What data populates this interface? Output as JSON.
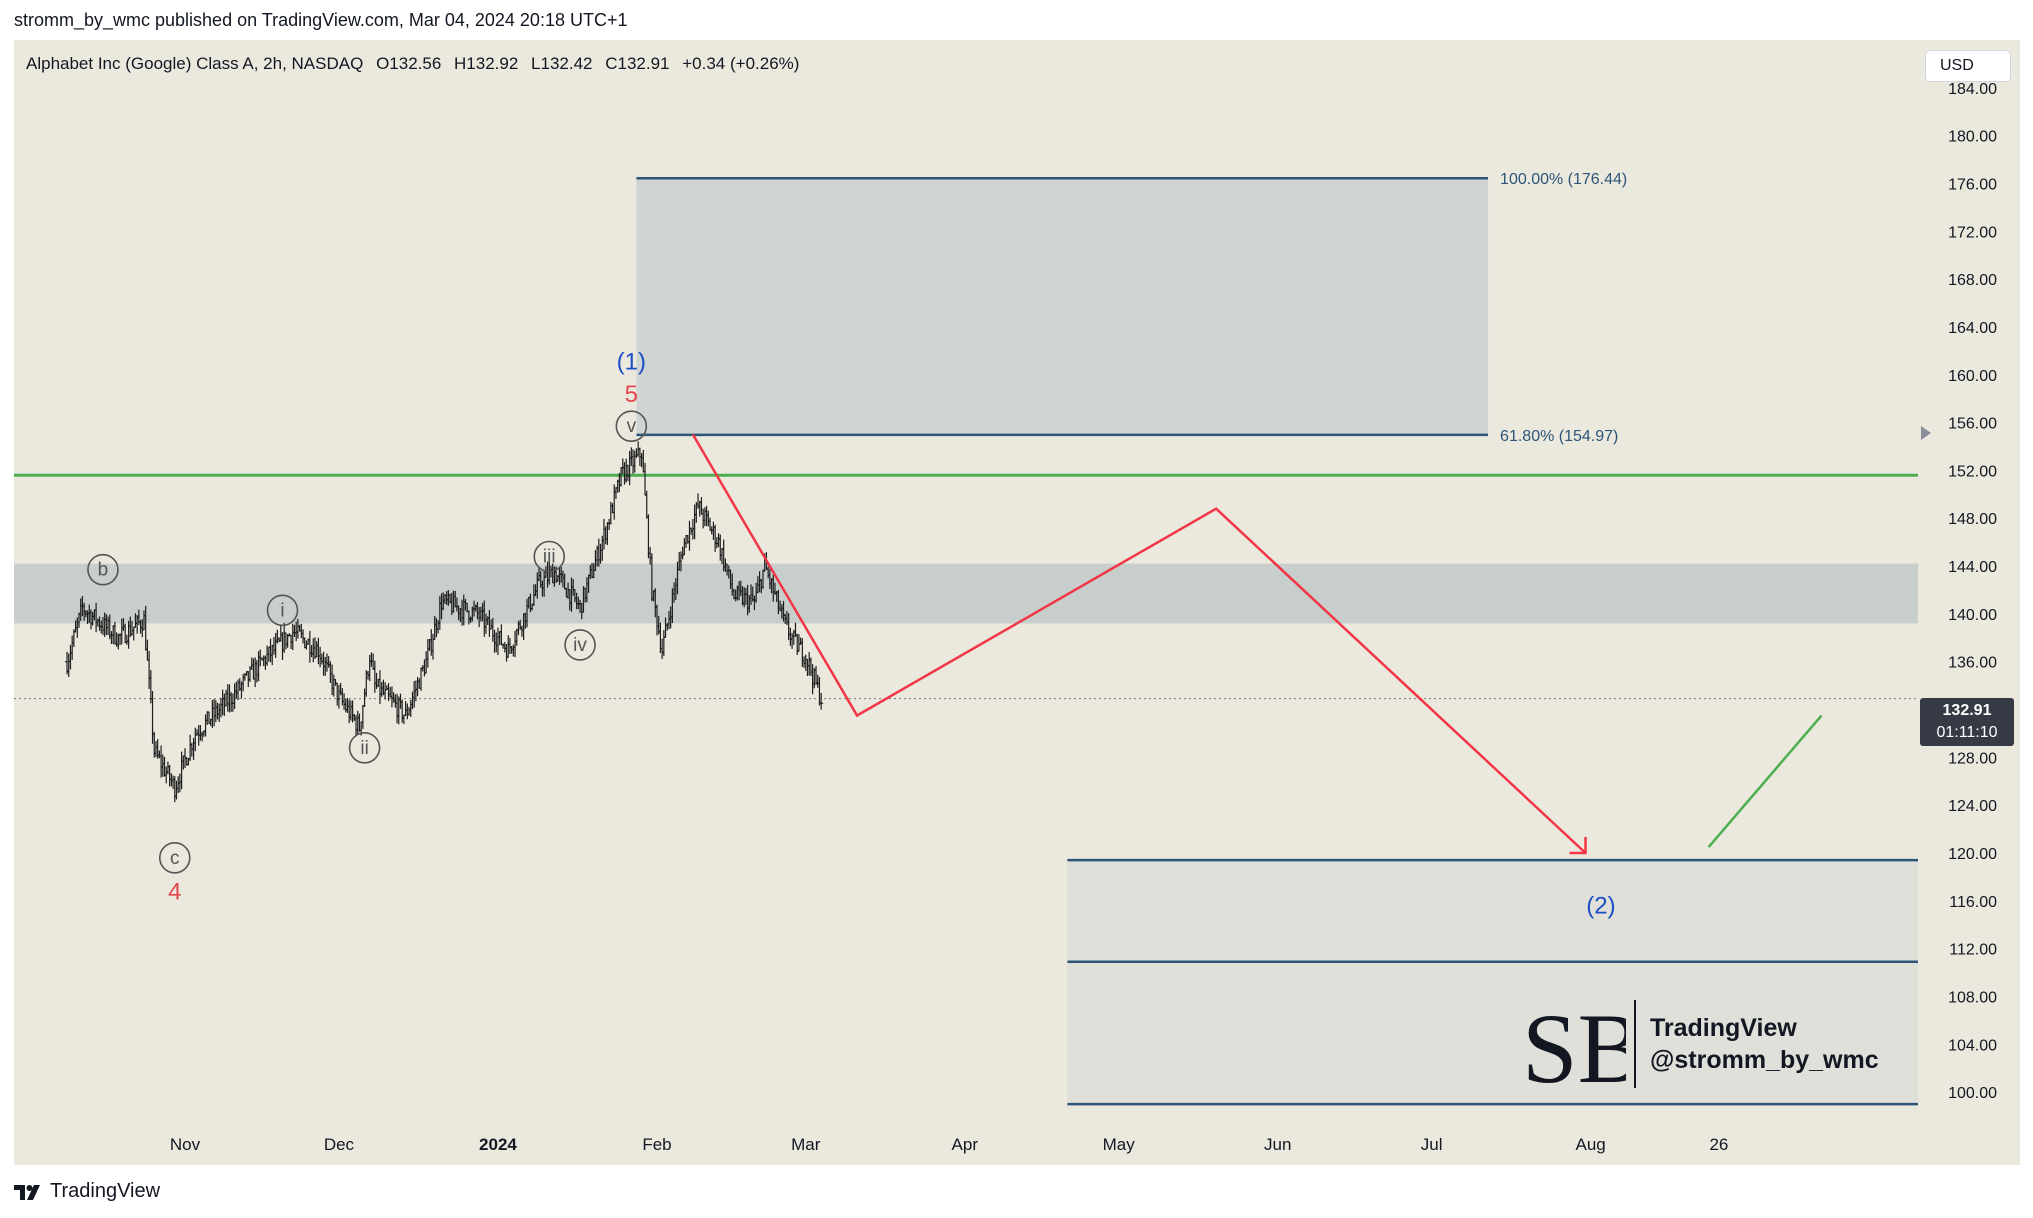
{
  "header": {
    "publisher_line": "stromm_by_wmc published on TradingView.com, Mar 04, 2024 20:18 UTC+1"
  },
  "chart_data": {
    "type": "candlestick",
    "symbol_line": {
      "name": "Alphabet Inc (Google) Class A, 2h, NASDAQ",
      "open": "O132.56",
      "high": "H132.92",
      "low": "L132.42",
      "close": "C132.91",
      "change": "+0.34 (+0.26%)"
    },
    "currency": "USD",
    "ylim": [
      97,
      188
    ],
    "y_ticks": [
      100,
      104,
      108,
      112,
      116,
      120,
      124,
      128,
      136,
      140,
      144,
      148,
      152,
      156,
      160,
      164,
      168,
      172,
      176,
      180,
      184
    ],
    "y_tick_labels": [
      "100.00",
      "104.00",
      "108.00",
      "112.00",
      "116.00",
      "120.00",
      "124.00",
      "128.00",
      "136.00",
      "140.00",
      "144.00",
      "148.00",
      "152.00",
      "156.00",
      "160.00",
      "164.00",
      "168.00",
      "172.00",
      "176.00",
      "180.00",
      "184.00"
    ],
    "x_ticks": [
      {
        "label": "Nov",
        "date": "2023-11-01"
      },
      {
        "label": "Dec",
        "date": "2023-12-01"
      },
      {
        "label": "2024",
        "date": "2024-01-01",
        "bold": true
      },
      {
        "label": "Feb",
        "date": "2024-02-01"
      },
      {
        "label": "Mar",
        "date": "2024-03-01"
      },
      {
        "label": "Apr",
        "date": "2024-04-01"
      },
      {
        "label": "May",
        "date": "2024-05-01"
      },
      {
        "label": "Jun",
        "date": "2024-06-01"
      },
      {
        "label": "Jul",
        "date": "2024-07-01"
      },
      {
        "label": "Aug",
        "date": "2024-08-01"
      },
      {
        "label": "26",
        "date": "2024-08-26"
      }
    ],
    "last_price": {
      "value": "132.91",
      "countdown": "01:11:10",
      "price": 132.91
    },
    "price_path": [
      {
        "date": "2023-10-09",
        "price": 136.0
      },
      {
        "date": "2023-10-12",
        "price": 140.5
      },
      {
        "date": "2023-10-19",
        "price": 138.0
      },
      {
        "date": "2023-10-24",
        "price": 139.5
      },
      {
        "date": "2023-10-26",
        "price": 128.5
      },
      {
        "date": "2023-10-30",
        "price": 125.5
      },
      {
        "date": "2023-11-03",
        "price": 130.0
      },
      {
        "date": "2023-11-10",
        "price": 133.0
      },
      {
        "date": "2023-11-16",
        "price": 136.0
      },
      {
        "date": "2023-11-22",
        "price": 138.5
      },
      {
        "date": "2023-11-27",
        "price": 137.0
      },
      {
        "date": "2023-12-01",
        "price": 133.0
      },
      {
        "date": "2023-12-05",
        "price": 130.5
      },
      {
        "date": "2023-12-07",
        "price": 136.5
      },
      {
        "date": "2023-12-08",
        "price": 134.0
      },
      {
        "date": "2023-12-14",
        "price": 131.5
      },
      {
        "date": "2023-12-18",
        "price": 136.0
      },
      {
        "date": "2023-12-21",
        "price": 141.0
      },
      {
        "date": "2023-12-28",
        "price": 140.0
      },
      {
        "date": "2024-01-03",
        "price": 137.0
      },
      {
        "date": "2024-01-09",
        "price": 142.5
      },
      {
        "date": "2024-01-12",
        "price": 143.5
      },
      {
        "date": "2024-01-17",
        "price": 140.5
      },
      {
        "date": "2024-01-22",
        "price": 147.0
      },
      {
        "date": "2024-01-25",
        "price": 151.5
      },
      {
        "date": "2024-01-29",
        "price": 153.5
      },
      {
        "date": "2024-01-31",
        "price": 142.0
      },
      {
        "date": "2024-02-02",
        "price": 137.0
      },
      {
        "date": "2024-02-06",
        "price": 145.5
      },
      {
        "date": "2024-02-09",
        "price": 149.0
      },
      {
        "date": "2024-02-13",
        "price": 146.0
      },
      {
        "date": "2024-02-16",
        "price": 141.5
      },
      {
        "date": "2024-02-20",
        "price": 141.0
      },
      {
        "date": "2024-02-22",
        "price": 144.0
      },
      {
        "date": "2024-02-26",
        "price": 139.0
      },
      {
        "date": "2024-02-28",
        "price": 137.5
      },
      {
        "date": "2024-03-01",
        "price": 136.5
      },
      {
        "date": "2024-03-04",
        "price": 132.91
      }
    ],
    "support_zone": {
      "low": 139.2,
      "high": 144.2
    },
    "horizontal_line": {
      "price": 151.6,
      "color": "#4caf50"
    },
    "fib_target_box": {
      "start": "2024-01-28",
      "end": "2024-07-12",
      "low": 154.97,
      "high": 176.44,
      "labels": [
        "100.00% (176.44)",
        "61.80% (154.97)"
      ]
    },
    "wave2_zone": {
      "start": "2024-04-21",
      "levels": [
        119.4,
        110.9,
        99.0
      ]
    },
    "projection_path": [
      {
        "date": "2024-02-08",
        "price": 155.0
      },
      {
        "date": "2024-03-11",
        "price": 131.5
      },
      {
        "date": "2024-05-20",
        "price": 148.8
      },
      {
        "date": "2024-07-31",
        "price": 120.0
      }
    ],
    "green_projection": [
      {
        "date": "2024-08-24",
        "price": 120.5
      },
      {
        "date": "2024-09-15",
        "price": 131.5
      }
    ],
    "wave_labels": [
      {
        "text": "b",
        "circle": true,
        "date": "2023-10-16",
        "price": 143.7,
        "color": "#555555"
      },
      {
        "text": "c",
        "circle": true,
        "date": "2023-10-30",
        "price": 119.6,
        "color": "#555555"
      },
      {
        "text": "4",
        "circle": false,
        "date": "2023-10-30",
        "price": 116.8,
        "color": "#e5474c"
      },
      {
        "text": "i",
        "circle": true,
        "date": "2023-11-20",
        "price": 140.3,
        "color": "#555555"
      },
      {
        "text": "ii",
        "circle": true,
        "date": "2023-12-06",
        "price": 128.8,
        "color": "#555555"
      },
      {
        "text": "iii",
        "circle": true,
        "date": "2024-01-11",
        "price": 144.8,
        "color": "#555555"
      },
      {
        "text": "iv",
        "circle": true,
        "date": "2024-01-17",
        "price": 137.4,
        "color": "#555555"
      },
      {
        "text": "v",
        "circle": true,
        "date": "2024-01-27",
        "price": 155.7,
        "color": "#555555"
      },
      {
        "text": "5",
        "circle": false,
        "date": "2024-01-27",
        "price": 158.4,
        "color": "#e5474c"
      },
      {
        "text": "(1)",
        "circle": false,
        "date": "2024-01-27",
        "price": 161.1,
        "color": "#1b4fc4"
      },
      {
        "text": "(2)",
        "circle": false,
        "date": "2024-08-03",
        "price": 115.6,
        "color": "#1b4fc4"
      }
    ]
  },
  "watermark": {
    "monogram": "SB",
    "line1": "TradingView",
    "line2": "@stromm_by_wmc"
  },
  "footer": {
    "brand": "TradingView",
    "logo_icon": "tradingview-logo-icon"
  }
}
